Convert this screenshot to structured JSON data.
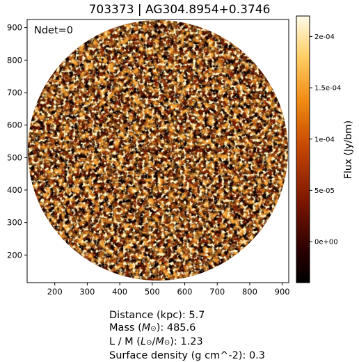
{
  "title": "703373 | AG304.8954+0.3746",
  "annotation": "Ndet=0",
  "colorbar": {
    "label": "Flux (Jy/bm)",
    "ticks": [
      "2e-04",
      "1.5e-04",
      "1e-04",
      "5e-05",
      "0e+00"
    ],
    "tick_values": [
      0.0002,
      0.00015,
      0.0001,
      5e-05,
      0.0
    ],
    "range": [
      -4e-05,
      0.00022
    ],
    "colormap": "afmhot"
  },
  "image": {
    "x_ticks": [
      "200",
      "300",
      "400",
      "500",
      "600",
      "700",
      "800",
      "900"
    ],
    "y_ticks": [
      "900",
      "800",
      "700",
      "600",
      "500",
      "400",
      "300",
      "200"
    ],
    "x_range": [
      115,
      920
    ],
    "y_range": [
      115,
      925
    ],
    "mask": "circular"
  },
  "info": {
    "distance": "Distance (kpc): 5.7",
    "mass_prefix": "Mass (",
    "mass_sym": "M",
    "mass_sub": "⊙",
    "mass_suffix": "): 485.6",
    "lm_prefix": "L / M (",
    "lm_l": "L",
    "lm_l_sub": "⊙",
    "lm_mid": "/",
    "lm_m": "M",
    "lm_m_sub": "⊙",
    "lm_suffix": "): 1.23",
    "density": "Surface density (g cm^-2): 0.3"
  }
}
